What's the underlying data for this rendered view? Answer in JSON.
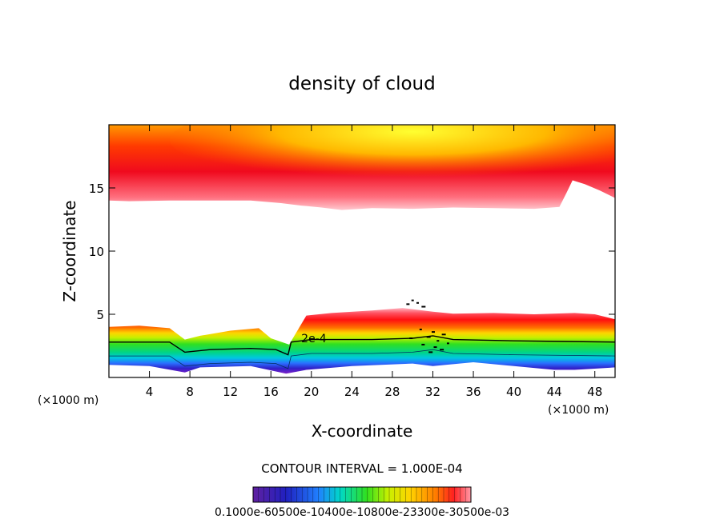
{
  "chart_data": {
    "type": "heatmap",
    "title": "density of cloud",
    "xlabel": "X-coordinate",
    "ylabel": "Z-coordinate",
    "x_unit": "(×1000 m)",
    "y_unit": "(×1000 m)",
    "xlim": [
      0,
      50
    ],
    "ylim": [
      0,
      20
    ],
    "x_ticks": [
      4,
      8,
      12,
      16,
      20,
      24,
      28,
      32,
      36,
      40,
      44,
      48
    ],
    "y_ticks": [
      5,
      10,
      15
    ],
    "contour_interval_text": "CONTOUR INTERVAL = 1.000E-04",
    "contour_label": "2e-4",
    "colorbar_labels_text": "0.1000e-60500e-10400e-10800e-23300e-30500e-03",
    "upper_cloud_bottom": [
      [
        0,
        14.0
      ],
      [
        2,
        13.95
      ],
      [
        6,
        14.0
      ],
      [
        10,
        14.0
      ],
      [
        14,
        14.0
      ],
      [
        17,
        13.8
      ],
      [
        19,
        13.6
      ],
      [
        21,
        13.45
      ],
      [
        23,
        13.25
      ],
      [
        26,
        13.4
      ],
      [
        30,
        13.35
      ],
      [
        34,
        13.45
      ],
      [
        38,
        13.4
      ],
      [
        42,
        13.35
      ],
      [
        44.5,
        13.5
      ],
      [
        45.2,
        14.6
      ],
      [
        45.8,
        15.6
      ],
      [
        47,
        15.3
      ],
      [
        48.5,
        14.8
      ],
      [
        50,
        14.2
      ]
    ],
    "lower_cloud_top": [
      [
        0,
        4.0
      ],
      [
        3,
        4.1
      ],
      [
        6,
        3.9
      ],
      [
        7.5,
        3.0
      ],
      [
        9,
        3.3
      ],
      [
        12,
        3.7
      ],
      [
        14.8,
        3.9
      ],
      [
        16,
        3.1
      ],
      [
        17.8,
        2.6
      ],
      [
        19.5,
        4.9
      ],
      [
        22,
        5.1
      ],
      [
        26,
        5.3
      ],
      [
        29,
        5.5
      ],
      [
        32,
        5.2
      ],
      [
        34,
        5.05
      ],
      [
        38,
        5.1
      ],
      [
        42,
        5.0
      ],
      [
        46,
        5.1
      ],
      [
        48,
        5.0
      ],
      [
        50,
        4.6
      ]
    ],
    "contour_2e4": [
      [
        0,
        2.8
      ],
      [
        6,
        2.8
      ],
      [
        7.5,
        2.0
      ],
      [
        10,
        2.2
      ],
      [
        14,
        2.3
      ],
      [
        16.5,
        2.2
      ],
      [
        17.7,
        1.8
      ],
      [
        18,
        2.8
      ],
      [
        20,
        3.0
      ],
      [
        26,
        3.0
      ],
      [
        30,
        3.1
      ],
      [
        32,
        3.3
      ],
      [
        34,
        3.0
      ],
      [
        40,
        2.9
      ],
      [
        45,
        2.85
      ],
      [
        50,
        2.8
      ]
    ],
    "lower_cloud_bottom": [
      [
        0,
        1.0
      ],
      [
        4,
        0.9
      ],
      [
        7.5,
        0.4
      ],
      [
        9,
        0.8
      ],
      [
        14,
        0.9
      ],
      [
        17.5,
        0.3
      ],
      [
        19.5,
        0.6
      ],
      [
        24,
        0.9
      ],
      [
        30,
        1.1
      ],
      [
        32,
        0.9
      ],
      [
        36,
        1.2
      ],
      [
        44,
        0.6
      ],
      [
        46,
        0.6
      ],
      [
        50,
        0.8
      ]
    ]
  }
}
